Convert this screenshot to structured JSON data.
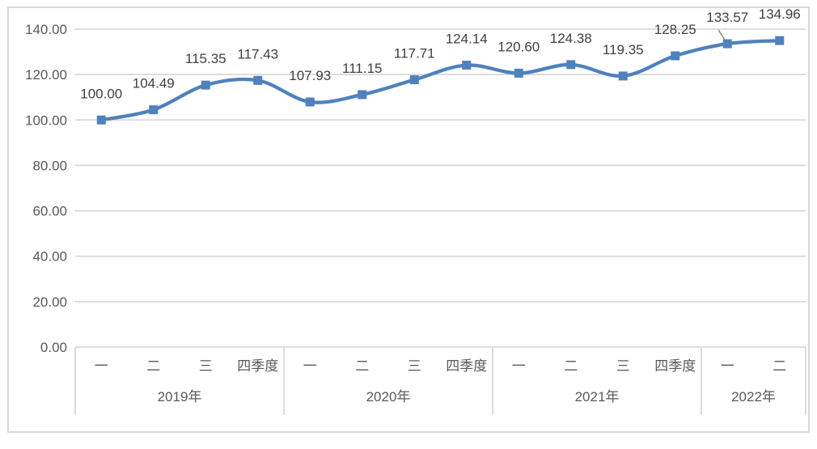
{
  "chart_data": {
    "type": "line",
    "smooth": true,
    "marker": "square",
    "grid": true,
    "legend": false,
    "title": "",
    "xlabel": "",
    "ylabel": "",
    "series": [
      {
        "name": "quarterly-index",
        "values": [
          100.0,
          104.49,
          115.35,
          117.43,
          107.93,
          111.15,
          117.71,
          124.14,
          120.6,
          124.38,
          119.35,
          128.25,
          133.57,
          134.96
        ]
      }
    ],
    "data_labels": [
      "100.00",
      "104.49",
      "115.35",
      "117.43",
      "107.93",
      "111.15",
      "117.71",
      "124.14",
      "120.60",
      "124.38",
      "119.35",
      "128.25",
      "133.57",
      "134.96"
    ],
    "category_groups": [
      {
        "year": "2019年",
        "quarters": [
          "一",
          "二",
          "三",
          "四季度"
        ]
      },
      {
        "year": "2020年",
        "quarters": [
          "一",
          "二",
          "三",
          "四季度"
        ]
      },
      {
        "year": "2021年",
        "quarters": [
          "一",
          "二",
          "三",
          "四季度"
        ]
      },
      {
        "year": "2022年",
        "quarters": [
          "一",
          "二"
        ]
      }
    ],
    "y_axis": {
      "min": 0,
      "max": 140,
      "step": 20,
      "tick_labels": [
        "0.00",
        "20.00",
        "40.00",
        "60.00",
        "80.00",
        "100.00",
        "120.00",
        "140.00"
      ]
    },
    "colors": {
      "line": "#4F81BD",
      "grid": "#D9D9D9",
      "border": "#D9D9D9",
      "axis_text": "#595959",
      "label_text": "#404040",
      "cursor": "#909090"
    }
  }
}
